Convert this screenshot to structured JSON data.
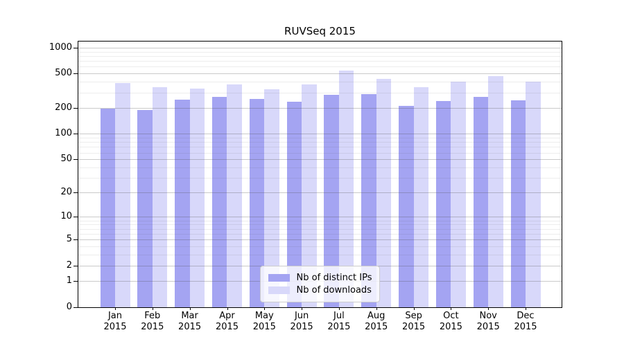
{
  "chart_data": {
    "type": "bar",
    "title": "RUVSeq 2015",
    "categories": [
      "Jan 2015",
      "Feb 2015",
      "Mar 2015",
      "Apr 2015",
      "May 2015",
      "Jun 2015",
      "Jul 2015",
      "Aug 2015",
      "Sep 2015",
      "Oct 2015",
      "Nov 2015",
      "Dec 2015"
    ],
    "series": [
      {
        "name": "Nb of distinct IPs",
        "color": "#a4a4f2",
        "values": [
          196,
          192,
          251,
          271,
          254,
          237,
          285,
          290,
          213,
          241,
          270,
          247
        ]
      },
      {
        "name": "Nb of downloads",
        "color": "#d8d8fa",
        "values": [
          390,
          354,
          340,
          380,
          333,
          380,
          550,
          435,
          354,
          410,
          476,
          405
        ]
      }
    ],
    "yscale": "log10(value+1)",
    "ylim": [
      0,
      1175
    ],
    "yticks": [
      0,
      1,
      2,
      5,
      10,
      20,
      50,
      100,
      200,
      500,
      1000
    ],
    "minor_yticks": [
      3,
      4,
      6,
      7,
      8,
      9,
      30,
      40,
      60,
      70,
      80,
      90,
      300,
      400,
      600,
      700,
      800,
      900
    ],
    "grid": true,
    "legend_position": "lower center"
  },
  "colors": {
    "background": "#ffffff",
    "axis": "#000000",
    "major_grid": "rgba(80,80,80,0.30)",
    "minor_grid": "rgba(80,80,80,0.10)",
    "legend_border": "#cccccc",
    "legend_bg": "rgba(255,255,255,0.8)"
  }
}
